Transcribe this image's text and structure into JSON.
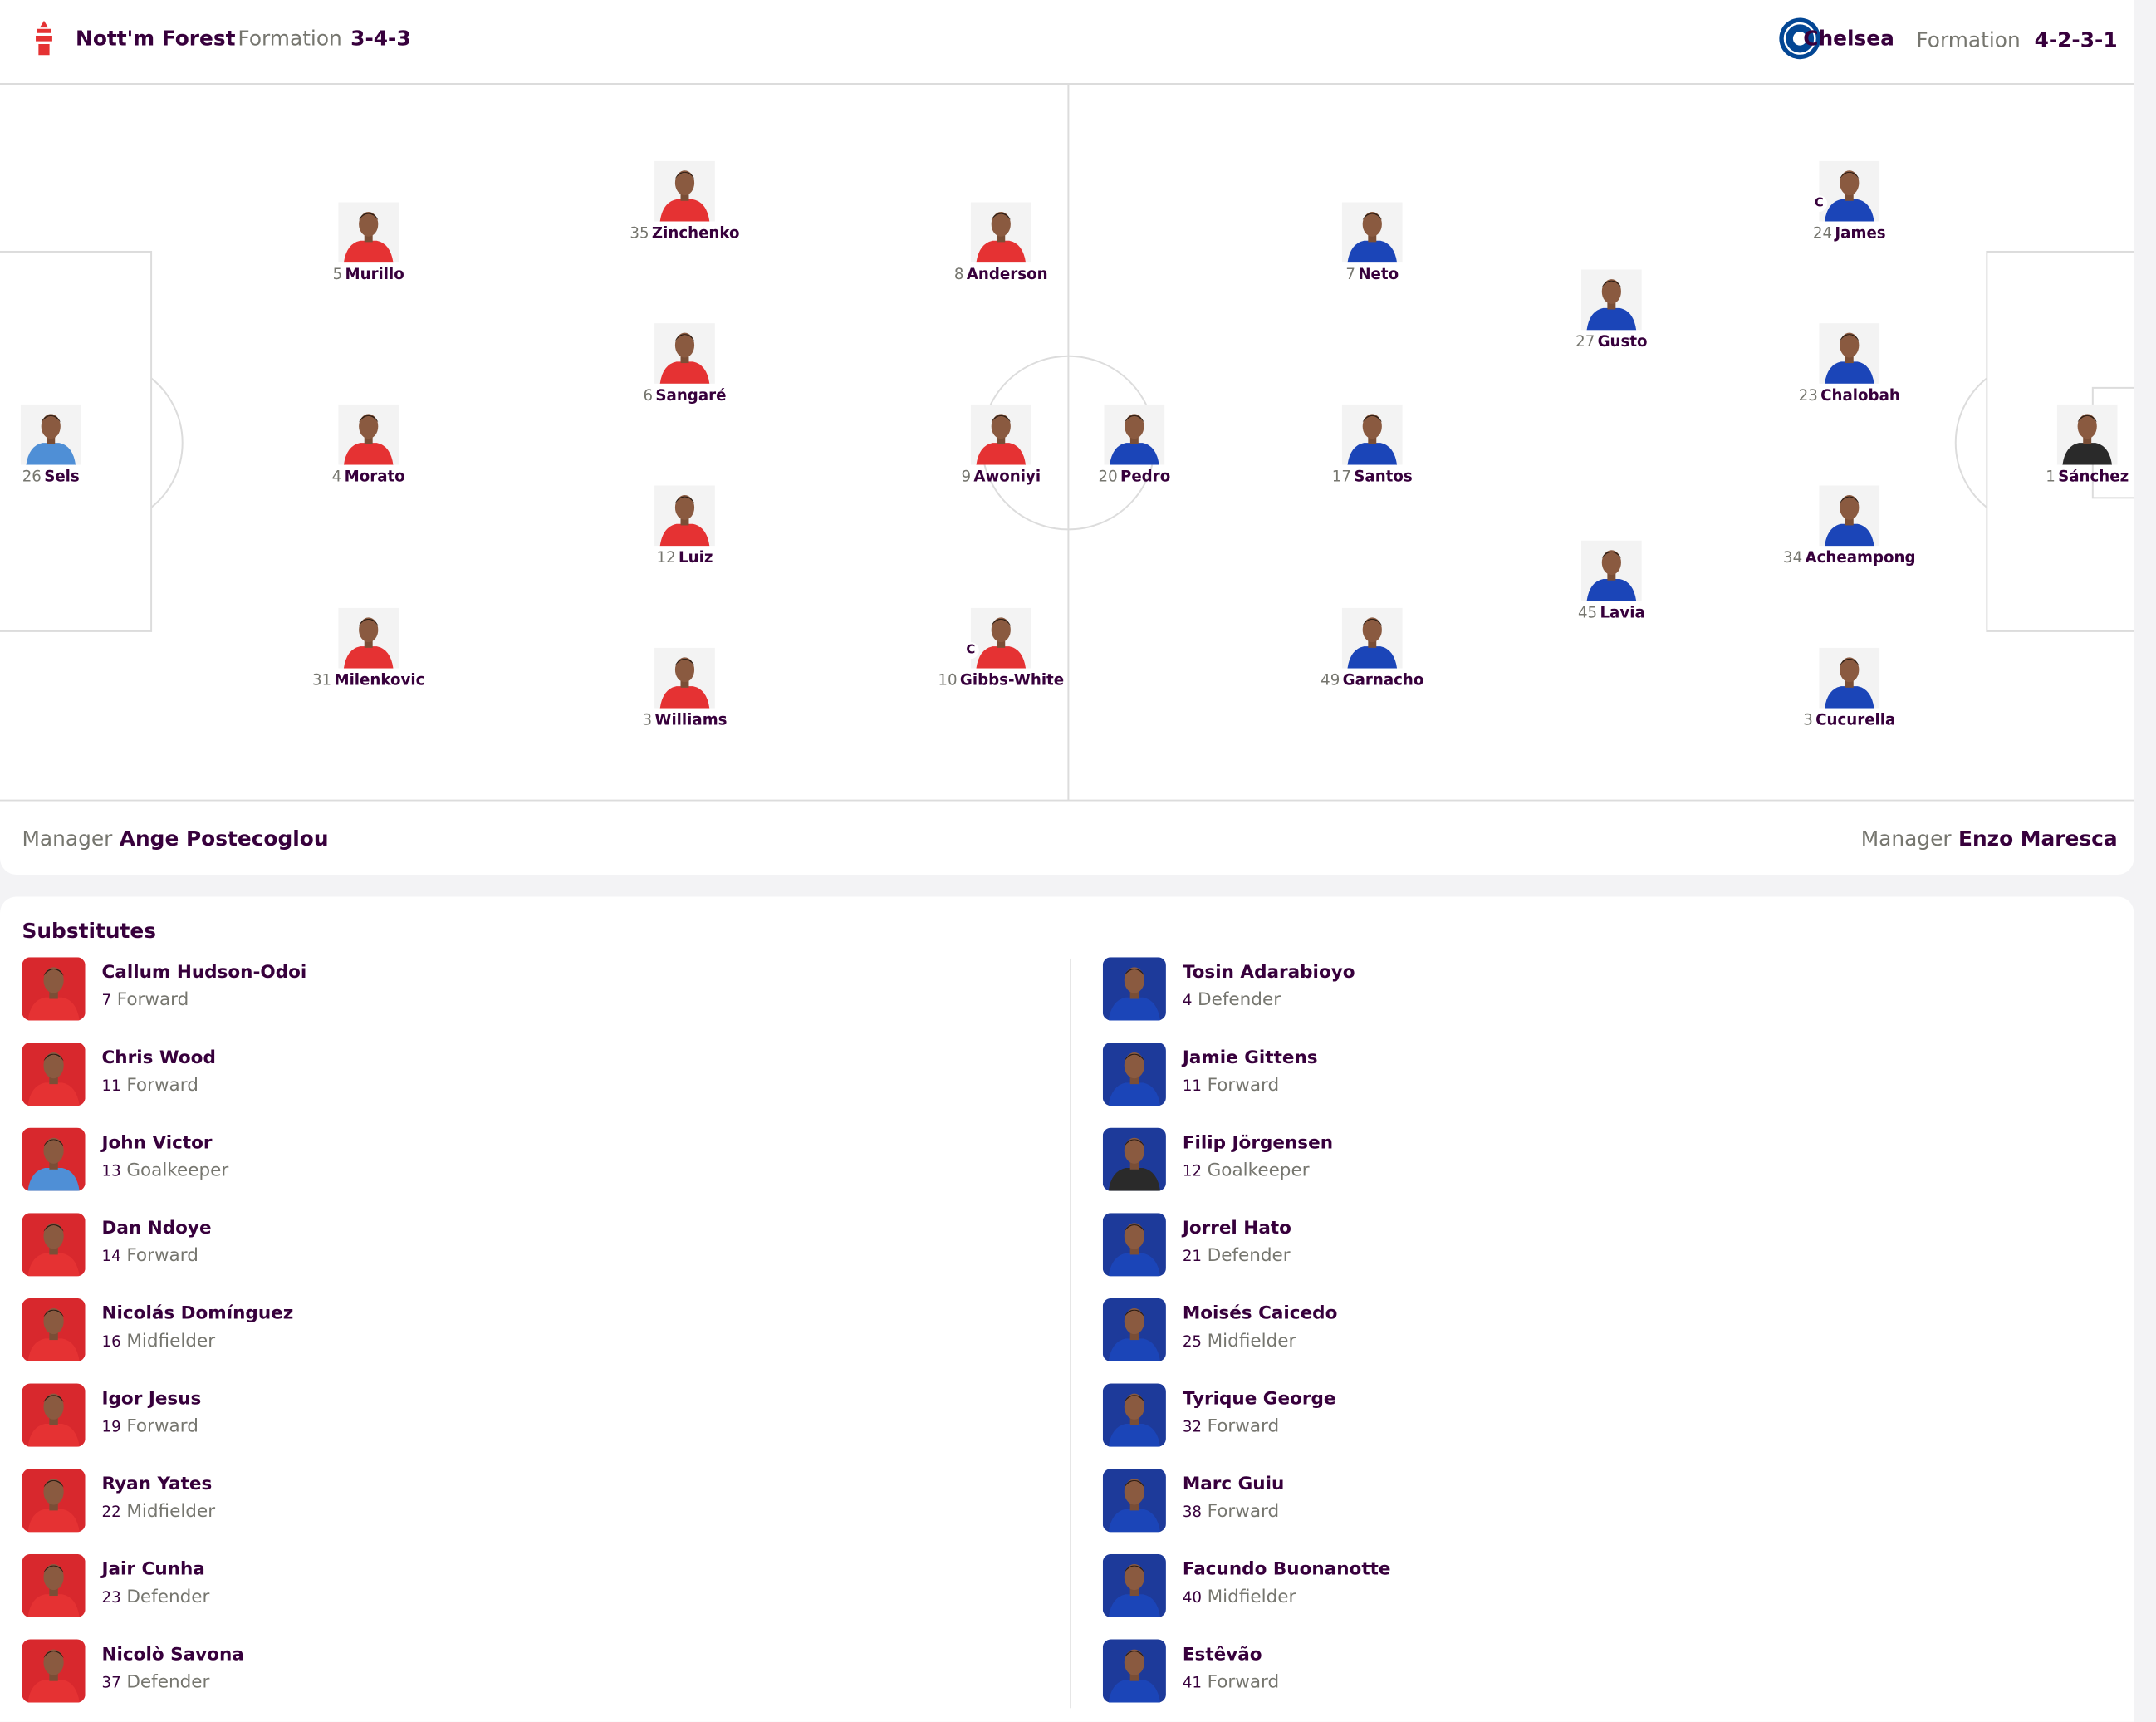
{
  "home": {
    "name": "Nott'm Forest",
    "formation_label": "Formation",
    "formation": "3-4-3",
    "manager_label": "Manager",
    "manager": "Ange Postecoglou",
    "players": [
      {
        "number": "26",
        "name": "Sels"
      },
      {
        "number": "5",
        "name": "Murillo"
      },
      {
        "number": "4",
        "name": "Morato"
      },
      {
        "number": "31",
        "name": "Milenkovic"
      },
      {
        "number": "35",
        "name": "Zinchenko"
      },
      {
        "number": "6",
        "name": "Sangaré"
      },
      {
        "number": "12",
        "name": "Luiz"
      },
      {
        "number": "3",
        "name": "Williams"
      },
      {
        "number": "8",
        "name": "Anderson"
      },
      {
        "number": "9",
        "name": "Awoniyi"
      },
      {
        "number": "10",
        "name": "Gibbs-White",
        "captain": "C"
      }
    ],
    "substitutes": [
      {
        "name": "Callum Hudson-Odoi",
        "number": "7",
        "position": "Forward"
      },
      {
        "name": "Chris Wood",
        "number": "11",
        "position": "Forward"
      },
      {
        "name": "John Victor",
        "number": "13",
        "position": "Goalkeeper"
      },
      {
        "name": "Dan Ndoye",
        "number": "14",
        "position": "Forward"
      },
      {
        "name": "Nicolás Domínguez",
        "number": "16",
        "position": "Midfielder"
      },
      {
        "name": "Igor Jesus",
        "number": "19",
        "position": "Forward"
      },
      {
        "name": "Ryan Yates",
        "number": "22",
        "position": "Midfielder"
      },
      {
        "name": "Jair Cunha",
        "number": "23",
        "position": "Defender"
      },
      {
        "name": "Nicolò Savona",
        "number": "37",
        "position": "Defender"
      }
    ]
  },
  "away": {
    "name": "Chelsea",
    "formation_label": "Formation",
    "formation": "4-2-3-1",
    "manager_label": "Manager",
    "manager": "Enzo Maresca",
    "players": [
      {
        "number": "1",
        "name": "Sánchez"
      },
      {
        "number": "24",
        "name": "James",
        "captain": "C"
      },
      {
        "number": "23",
        "name": "Chalobah"
      },
      {
        "number": "34",
        "name": "Acheampong"
      },
      {
        "number": "3",
        "name": "Cucurella"
      },
      {
        "number": "27",
        "name": "Gusto"
      },
      {
        "number": "45",
        "name": "Lavia"
      },
      {
        "number": "7",
        "name": "Neto"
      },
      {
        "number": "17",
        "name": "Santos"
      },
      {
        "number": "49",
        "name": "Garnacho"
      },
      {
        "number": "20",
        "name": "Pedro"
      }
    ],
    "substitutes": [
      {
        "name": "Tosin Adarabioyo",
        "number": "4",
        "position": "Defender"
      },
      {
        "name": "Jamie Gittens",
        "number": "11",
        "position": "Forward"
      },
      {
        "name": "Filip Jörgensen",
        "number": "12",
        "position": "Goalkeeper"
      },
      {
        "name": "Jorrel Hato",
        "number": "21",
        "position": "Defender"
      },
      {
        "name": "Moisés Caicedo",
        "number": "25",
        "position": "Midfielder"
      },
      {
        "name": "Tyrique George",
        "number": "32",
        "position": "Forward"
      },
      {
        "name": "Marc Guiu",
        "number": "38",
        "position": "Forward"
      },
      {
        "name": "Facundo Buonanotte",
        "number": "40",
        "position": "Midfielder"
      },
      {
        "name": "Estêvão",
        "number": "41",
        "position": "Forward"
      }
    ]
  },
  "substitutes_title": "Substitutes"
}
